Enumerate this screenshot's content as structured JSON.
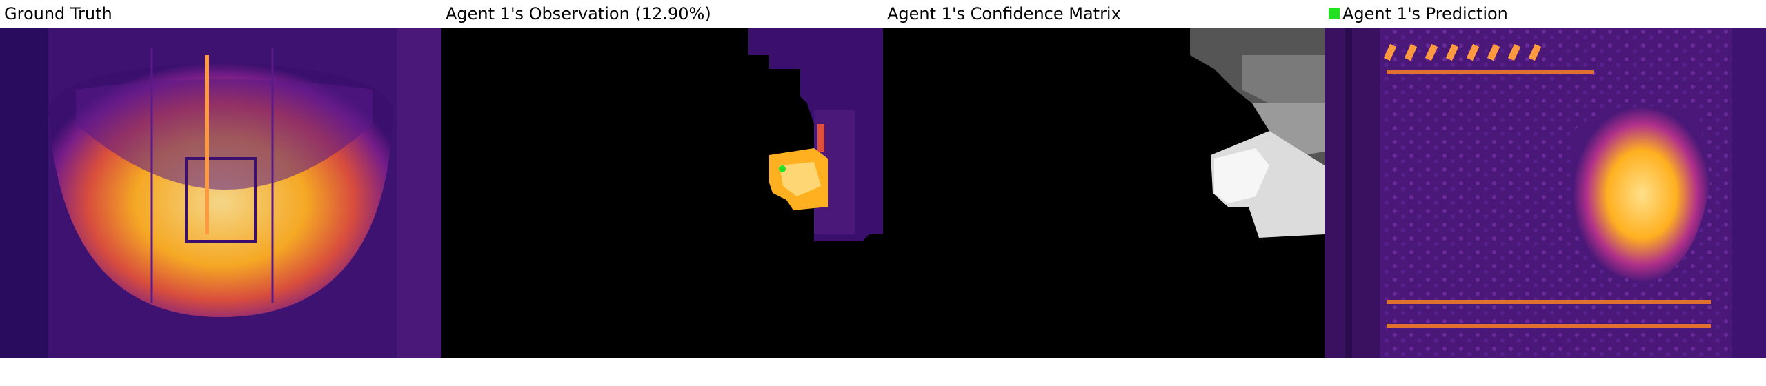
{
  "panels": [
    {
      "title": "Ground Truth"
    },
    {
      "title": "Agent 1's Observation (12.90%)"
    },
    {
      "title": "Agent 1's Confidence Matrix"
    },
    {
      "title": "Agent 1's Prediction"
    }
  ],
  "legend": {
    "color": "#22e022"
  },
  "colors": {
    "background": "#ffffff",
    "hidden": "#000000",
    "thermal_dark": "#3a0f6e",
    "thermal_mid": "#8a2a9a",
    "thermal_hot": "#ff9a1a",
    "thermal_white": "#fff2c0"
  }
}
